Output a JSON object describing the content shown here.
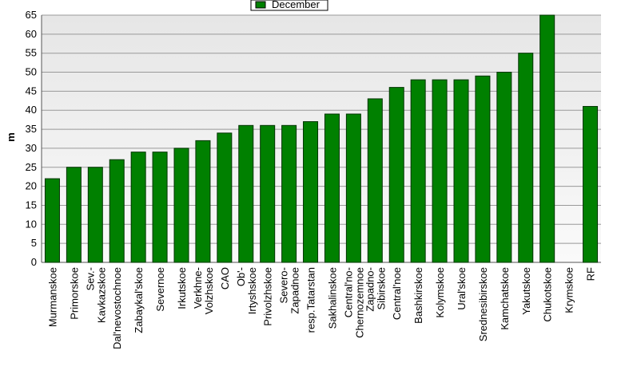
{
  "chart_data": {
    "type": "bar",
    "y_label": "m",
    "categories": [
      "Murmanskoe",
      "Primorskoe",
      "Sev.-Kavkazskoe",
      "Dal'nevostochnoe",
      "Zabaykal'skoe",
      "Severnoe",
      "Irkutskoe",
      "Verkhne-Volzhskoe",
      "CAO",
      "Ob'-Irtyshskoe",
      "Privolzhskoe",
      "Severo-Zapadnoe",
      "resp.Tatarstan",
      "Sakhalinskoe",
      "Central'no-Chernozemnoe",
      "Zapadno-Sibirskoe",
      "Central'noe",
      "Bashkirskoe",
      "Kolymskoe",
      "Ural'skoe",
      "Srednesibirskoe",
      "Kamchatskoe",
      "Yakutskoe",
      "Chukotskoe",
      "Krymskoe",
      "RF"
    ],
    "series": [
      {
        "name": "December",
        "color": "#008000",
        "values": [
          22,
          25,
          25,
          27,
          29,
          29,
          30,
          32,
          34,
          36,
          36,
          36,
          37,
          39,
          39,
          43,
          46,
          48,
          48,
          48,
          49,
          50,
          55,
          65,
          null,
          41
        ]
      }
    ],
    "ylim": [
      0,
      65
    ],
    "yticks": [
      0,
      5,
      10,
      15,
      20,
      25,
      30,
      35,
      40,
      45,
      50,
      55,
      60,
      65
    ],
    "grid": true,
    "legend": "top"
  }
}
